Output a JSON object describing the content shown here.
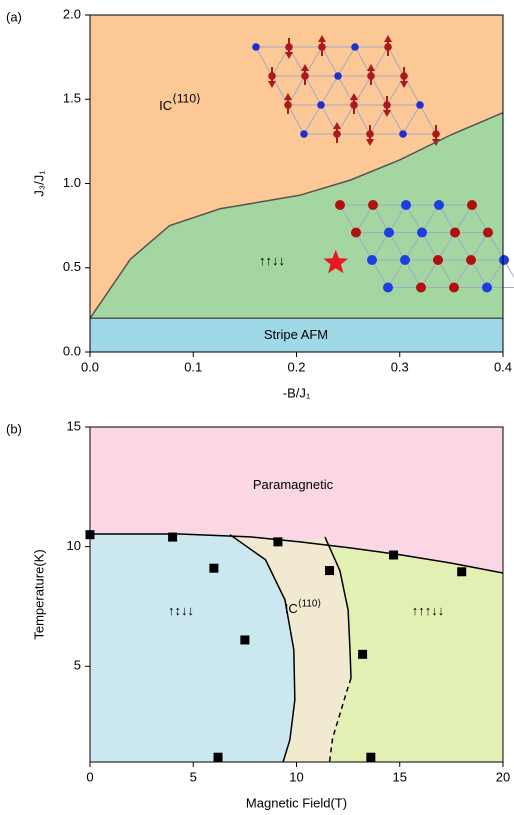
{
  "chart_data": [
    {
      "type": "phase-diagram",
      "panel_label": "(a)",
      "x_label": "-B/J₁",
      "y_label": "J₃/J₁",
      "xlim": [
        0,
        0.4
      ],
      "ylim": [
        0,
        2
      ],
      "xticks": [
        {
          "value": 0,
          "label": "0.0"
        },
        0.1,
        0.2,
        0.3,
        0.4
      ],
      "yticks": [
        {
          "value": 0,
          "label": "0.0"
        },
        0.5,
        {
          "value": 1,
          "label": "1.0"
        },
        1.5,
        {
          "value": 2,
          "label": "2.0"
        }
      ],
      "boundaries": [
        {
          "x": [
            0,
            0.039,
            0.077,
            0.126,
            0.155,
            0.203,
            0.252,
            0.3,
            0.35,
            0.4
          ],
          "y": [
            0.2,
            0.55,
            0.75,
            0.85,
            0.88,
            0.93,
            1.02,
            1.14,
            1.29,
            1.42
          ],
          "style": "solid",
          "color": "#555555"
        },
        {
          "x": [
            0,
            0.4
          ],
          "y": [
            0.2,
            0.2
          ],
          "style": "solid",
          "color": "#555555"
        }
      ],
      "regions": [
        {
          "label": "IC",
          "sup": "⟨110⟩",
          "color": "#fbc896"
        },
        {
          "label": "↑↑↓↓",
          "color": "#a3d6a0",
          "below": 0
        },
        {
          "label": "Stripe AFM",
          "color": "#9fd8e6",
          "below": 1
        }
      ],
      "marker": {
        "x": 0.238,
        "y": 0.53,
        "color": "#e8181e"
      }
    },
    {
      "type": "phase-diagram",
      "panel_label": "(b)",
      "x_label": "Magnetic Field(T)",
      "y_label": "Temperature(K)",
      "xlim": [
        0,
        20
      ],
      "ylim": [
        1,
        15
      ],
      "xticks": [
        0,
        5,
        10,
        15,
        20
      ],
      "yticks": [
        5,
        10,
        15
      ],
      "boundaries": [
        {
          "x": [
            0,
            4.36,
            7.75,
            10.17,
            12.59,
            15.01,
            17.43,
            20
          ],
          "y": [
            10.53,
            10.53,
            10.41,
            10.2,
            9.95,
            9.66,
            9.32,
            8.9
          ],
          "style": "solid",
          "color": "#000000"
        },
        {
          "x": [
            6.78,
            8.5,
            9.44,
            9.87,
            9.92,
            9.68,
            9.35
          ],
          "y": [
            10.5,
            9.45,
            7.78,
            5.69,
            3.6,
            1.93,
            1
          ],
          "style": "solid",
          "color": "#000000"
        },
        {
          "x": [
            11.38,
            12.1,
            12.5,
            12.59,
            12.64
          ],
          "y": [
            10.4,
            9,
            7.35,
            5.69,
            4.5
          ],
          "style": "solid",
          "color": "#000000"
        },
        {
          "x": [
            12.64,
            12.45,
            12.1,
            11.75,
            11.6
          ],
          "y": [
            4.5,
            4,
            3,
            2,
            1
          ],
          "style": "dashed",
          "color": "#000000"
        }
      ],
      "regions": [
        {
          "label": "Paramagnetic",
          "color": "#fbd7e5"
        },
        {
          "label": "↑↑↑↓↓",
          "color": "#e2f0b4",
          "below": 0
        },
        {
          "label": "IC",
          "sup": "⟨110⟩",
          "color": "#f1ead0",
          "below": 0,
          "left_of": [
            2,
            3
          ]
        },
        {
          "label": "↑↕↓↓",
          "color": "#cbe8f0",
          "below": 0,
          "left_of": [
            1
          ]
        }
      ],
      "points": {
        "x": [
          0,
          4,
          6,
          7.5,
          6.2,
          9.1,
          11.6,
          13.2,
          13.6,
          14.7,
          18
        ],
        "values": [
          10.5,
          10.4,
          9.1,
          6.1,
          1.2,
          10.2,
          9,
          5.5,
          1.2,
          9.65,
          8.95
        ],
        "color": "#000000"
      }
    }
  ]
}
